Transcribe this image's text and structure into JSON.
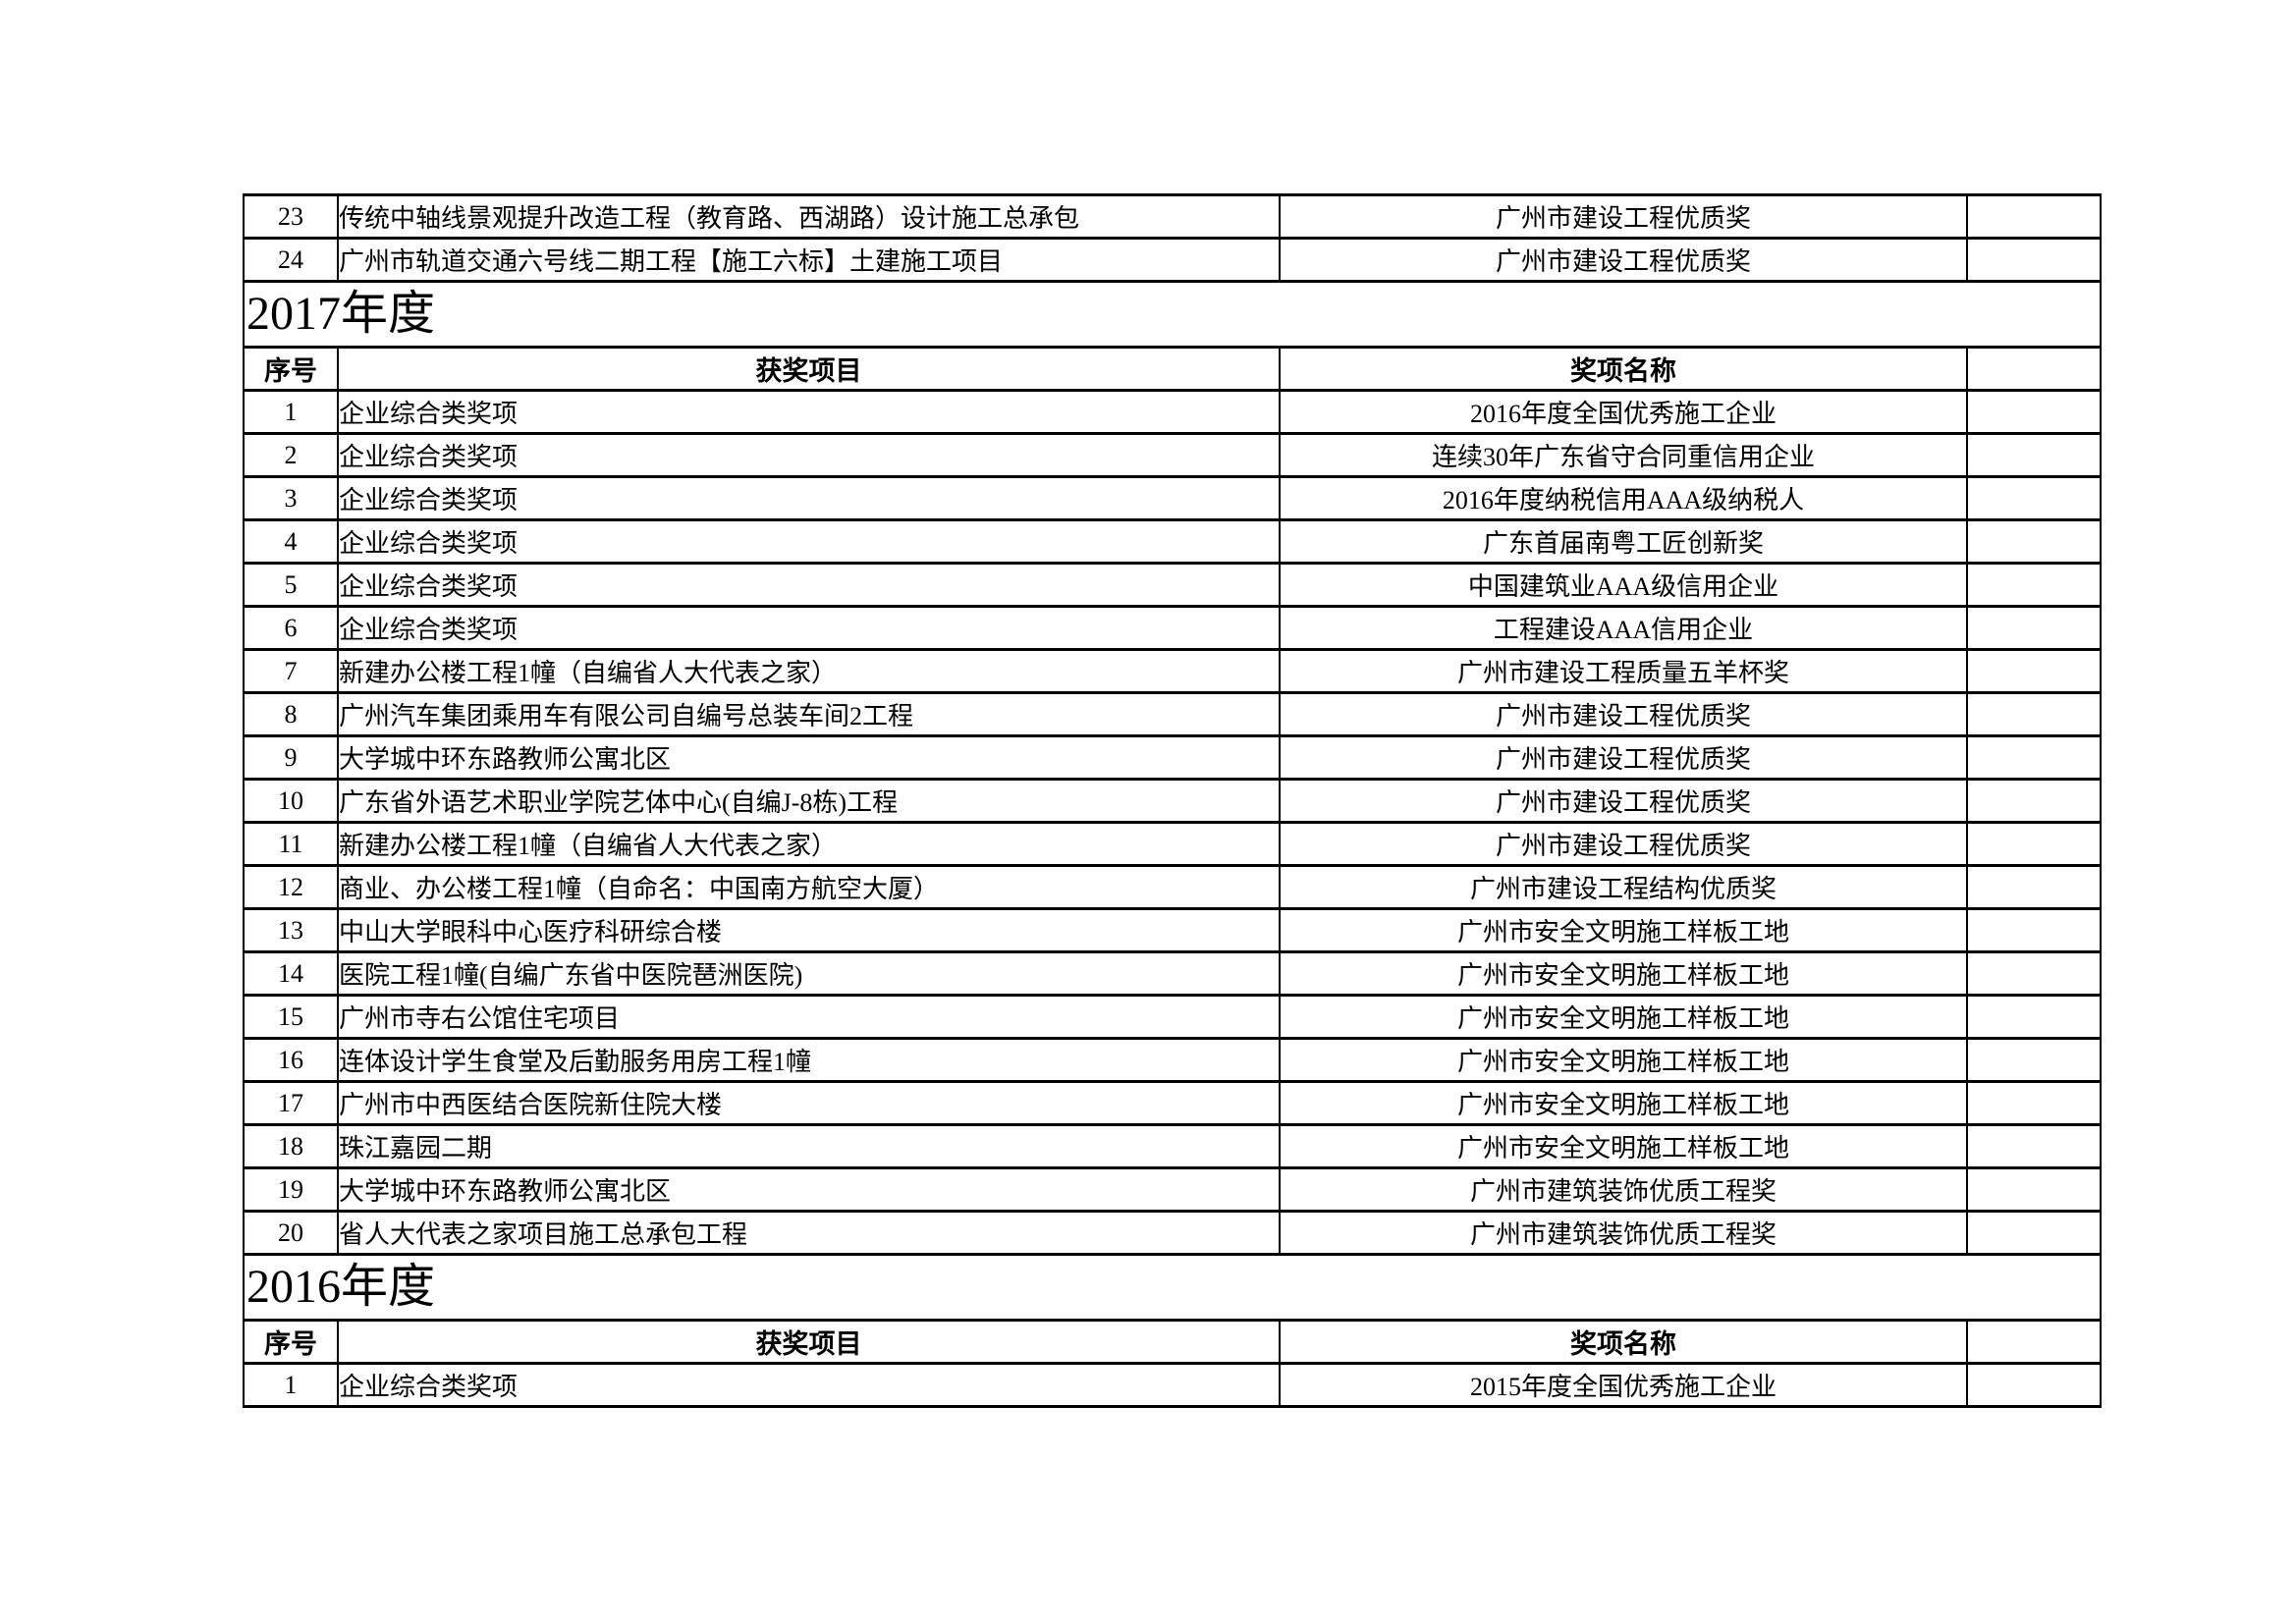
{
  "page": {
    "background": "#ffffff",
    "text_color": "#000000",
    "border_color": "#000000"
  },
  "table": {
    "headers": {
      "no": "序号",
      "project": "获奖项目",
      "award": "奖项名称",
      "extra": ""
    },
    "continuation_rows": [
      {
        "no": "23",
        "project": "传统中轴线景观提升改造工程（教育路、西湖路）设计施工总承包",
        "award": "广州市建设工程优质奖"
      },
      {
        "no": "24",
        "project": "广州市轨道交通六号线二期工程【施工六标】土建施工项目",
        "award": "广州市建设工程优质奖"
      }
    ],
    "sections": [
      {
        "year": "2017年度",
        "rows": [
          {
            "no": "1",
            "project": "企业综合类奖项",
            "award": "2016年度全国优秀施工企业"
          },
          {
            "no": "2",
            "project": "企业综合类奖项",
            "award": "连续30年广东省守合同重信用企业"
          },
          {
            "no": "3",
            "project": "企业综合类奖项",
            "award": "2016年度纳税信用AAA级纳税人"
          },
          {
            "no": "4",
            "project": "企业综合类奖项",
            "award": "广东首届南粤工匠创新奖"
          },
          {
            "no": "5",
            "project": "企业综合类奖项",
            "award": "中国建筑业AAA级信用企业"
          },
          {
            "no": "6",
            "project": "企业综合类奖项",
            "award": "工程建设AAA信用企业"
          },
          {
            "no": "7",
            "project": "新建办公楼工程1幢（自编省人大代表之家）",
            "award": "广州市建设工程质量五羊杯奖"
          },
          {
            "no": "8",
            "project": "广州汽车集团乘用车有限公司自编号总装车间2工程",
            "award": "广州市建设工程优质奖"
          },
          {
            "no": "9",
            "project": "大学城中环东路教师公寓北区",
            "award": "广州市建设工程优质奖"
          },
          {
            "no": "10",
            "project": "广东省外语艺术职业学院艺体中心(自编J-8栋)工程",
            "award": "广州市建设工程优质奖"
          },
          {
            "no": "11",
            "project": "新建办公楼工程1幢（自编省人大代表之家）",
            "award": "广州市建设工程优质奖"
          },
          {
            "no": "12",
            "project": "商业、办公楼工程1幢（自命名：中国南方航空大厦）",
            "award": "广州市建设工程结构优质奖"
          },
          {
            "no": "13",
            "project": "中山大学眼科中心医疗科研综合楼",
            "award": "广州市安全文明施工样板工地"
          },
          {
            "no": "14",
            "project": "医院工程1幢(自编广东省中医院琶洲医院)",
            "award": "广州市安全文明施工样板工地"
          },
          {
            "no": "15",
            "project": "广州市寺右公馆住宅项目",
            "award": "广州市安全文明施工样板工地"
          },
          {
            "no": "16",
            "project": "连体设计学生食堂及后勤服务用房工程1幢",
            "award": "广州市安全文明施工样板工地"
          },
          {
            "no": "17",
            "project": "广州市中西医结合医院新住院大楼",
            "award": "广州市安全文明施工样板工地"
          },
          {
            "no": "18",
            "project": "珠江嘉园二期",
            "award": "广州市安全文明施工样板工地"
          },
          {
            "no": "19",
            "project": "大学城中环东路教师公寓北区",
            "award": "广州市建筑装饰优质工程奖"
          },
          {
            "no": "20",
            "project": "省人大代表之家项目施工总承包工程",
            "award": "广州市建筑装饰优质工程奖"
          }
        ]
      },
      {
        "year": "2016年度",
        "rows": [
          {
            "no": "1",
            "project": "企业综合类奖项",
            "award": "2015年度全国优秀施工企业"
          }
        ]
      }
    ]
  }
}
